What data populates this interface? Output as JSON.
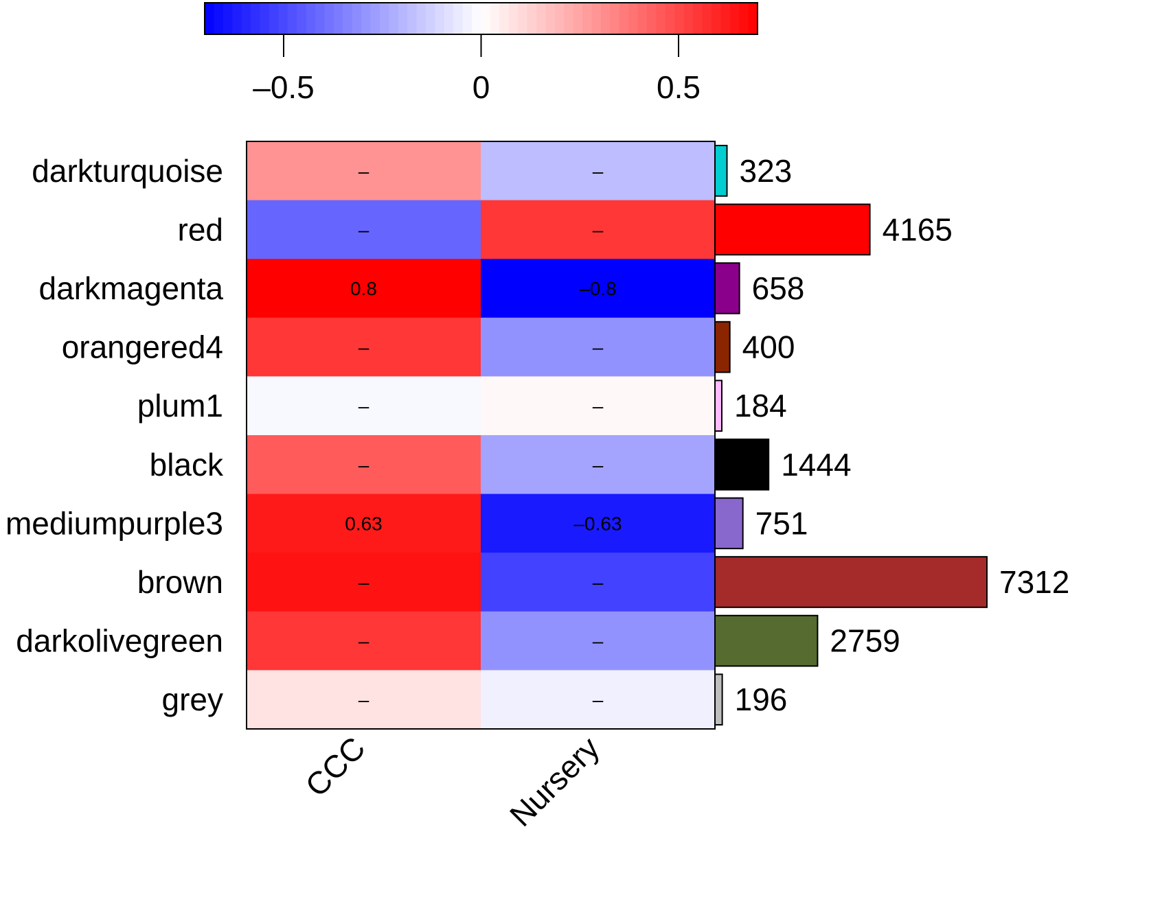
{
  "chart_data": {
    "type": "heatmap",
    "title": "",
    "rows": [
      "darkturquoise",
      "red",
      "darkmagenta",
      "orangered4",
      "plum1",
      "black",
      "mediumpurple3",
      "brown",
      "darkolivegreen",
      "grey"
    ],
    "columns": [
      "CCC",
      "Nursery"
    ],
    "values": [
      [
        0.3,
        -0.18
      ],
      [
        -0.42,
        0.55
      ],
      [
        0.8,
        -0.8
      ],
      [
        0.55,
        -0.3
      ],
      [
        -0.02,
        0.02
      ],
      [
        0.45,
        -0.25
      ],
      [
        0.63,
        -0.63
      ],
      [
        0.65,
        -0.52
      ],
      [
        0.55,
        -0.3
      ],
      [
        0.08,
        -0.04
      ]
    ],
    "cell_labels": [
      [
        "–",
        "–"
      ],
      [
        "–",
        "–"
      ],
      [
        "0.8",
        "–0.8"
      ],
      [
        "–",
        "–"
      ],
      [
        "–",
        "–"
      ],
      [
        "–",
        "–"
      ],
      [
        "0.63",
        "–0.63"
      ],
      [
        "–",
        "–"
      ],
      [
        "–",
        "–"
      ],
      [
        "–",
        "–"
      ]
    ],
    "colorbar": {
      "range": [
        -0.7,
        0.7
      ],
      "ticks": [
        -0.5,
        0,
        0.5
      ],
      "tick_labels": [
        "–0.5",
        "0",
        "0.5"
      ],
      "low_color": "#0000ff",
      "mid_color": "#ffffff",
      "high_color": "#ff0000",
      "placement": "top"
    },
    "module_sizes": {
      "values": [
        323,
        4165,
        658,
        400,
        184,
        1444,
        751,
        7312,
        2759,
        196
      ],
      "labels": [
        "323",
        "4165",
        "658",
        "400",
        "184",
        "1444",
        "751",
        "7312",
        "2759",
        "196"
      ],
      "colors": [
        "#00ced1",
        "#ff0000",
        "#8b008b",
        "#8b2500",
        "#ffbbff",
        "#000000",
        "#8968cd",
        "#a52a2a",
        "#556b2f",
        "#bebebe"
      ],
      "placement": "right"
    }
  }
}
